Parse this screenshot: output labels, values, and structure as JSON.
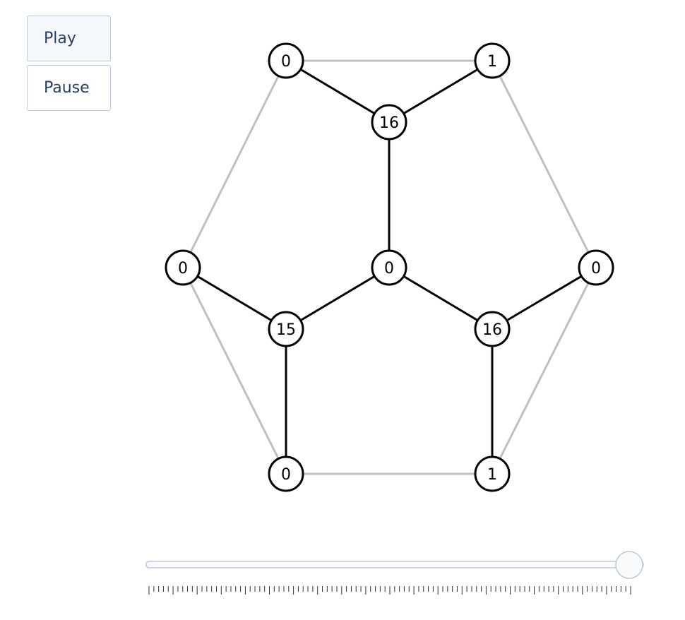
{
  "controls": {
    "play_label": "Play",
    "pause_label": "Pause"
  },
  "colors": {
    "active_edge": "#000000",
    "inactive_edge": "#c0c0c0",
    "node_fill": "#ffffff",
    "node_stroke": "#000000",
    "slider_track": "#f8fafc",
    "slider_border": "#bec8d9",
    "tick": "#333333"
  },
  "graph": {
    "nodes": [
      {
        "id": "n0",
        "label": "0"
      },
      {
        "id": "n1",
        "label": "1"
      },
      {
        "id": "n2",
        "label": "16"
      },
      {
        "id": "n3",
        "label": "0"
      },
      {
        "id": "n4",
        "label": "0"
      },
      {
        "id": "n5",
        "label": "0"
      },
      {
        "id": "n6",
        "label": "15"
      },
      {
        "id": "n7",
        "label": "16"
      },
      {
        "id": "n8",
        "label": "0"
      },
      {
        "id": "n9",
        "label": "1"
      }
    ],
    "edges": [
      {
        "from": "n0",
        "to": "n1",
        "active": false
      },
      {
        "from": "n0",
        "to": "n3",
        "active": false
      },
      {
        "from": "n1",
        "to": "n5",
        "active": false
      },
      {
        "from": "n3",
        "to": "n8",
        "active": false
      },
      {
        "from": "n5",
        "to": "n9",
        "active": false
      },
      {
        "from": "n8",
        "to": "n9",
        "active": false
      },
      {
        "from": "n0",
        "to": "n2",
        "active": true
      },
      {
        "from": "n1",
        "to": "n2",
        "active": true
      },
      {
        "from": "n2",
        "to": "n4",
        "active": true
      },
      {
        "from": "n3",
        "to": "n6",
        "active": true
      },
      {
        "from": "n4",
        "to": "n6",
        "active": true
      },
      {
        "from": "n4",
        "to": "n7",
        "active": true
      },
      {
        "from": "n5",
        "to": "n7",
        "active": true
      },
      {
        "from": "n6",
        "to": "n8",
        "active": true
      },
      {
        "from": "n7",
        "to": "n9",
        "active": true
      }
    ]
  },
  "slider": {
    "value_fraction": 1.0,
    "tick_count": 100
  }
}
